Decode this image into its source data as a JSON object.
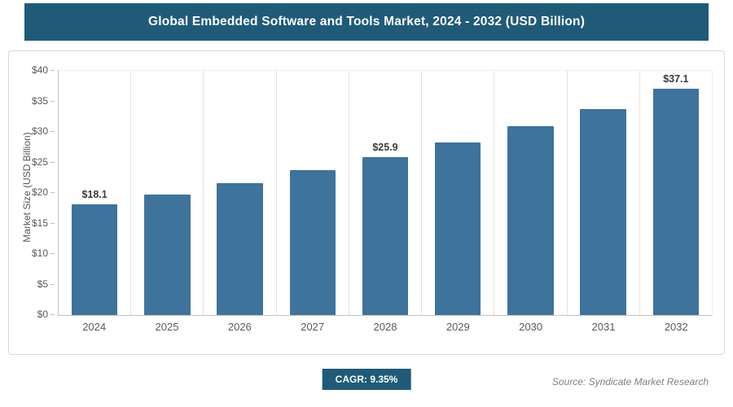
{
  "chart_data": {
    "type": "bar",
    "title": "Global Embedded Software and Tools Market, 2024 - 2032 (USD Billion)",
    "categories": [
      "2024",
      "2025",
      "2026",
      "2027",
      "2028",
      "2029",
      "2030",
      "2031",
      "2032"
    ],
    "values": [
      18.1,
      19.8,
      21.6,
      23.7,
      25.9,
      28.3,
      30.9,
      33.8,
      37.1
    ],
    "value_labels": [
      "$18.1",
      null,
      null,
      null,
      "$25.9",
      null,
      null,
      null,
      "$37.1"
    ],
    "xlabel": "",
    "ylabel": "Market Size (USD Billion)",
    "ylim": [
      0,
      40
    ],
    "ytick_step": 5,
    "ytick_labels": [
      "$0",
      "$5",
      "$10",
      "$15",
      "$20",
      "$25",
      "$30",
      "$35",
      "$40"
    ],
    "grid": "vertical-only",
    "legend": "none"
  },
  "footer": {
    "cagr_label": "CAGR: 9.35%",
    "source": "Source: Syndicate Market Research"
  },
  "colors": {
    "banner": "#1f5b78",
    "bar": "#3e739c",
    "axis_text": "#595959",
    "value_label_text": "#3a3a3a",
    "source_text": "#7f7f7f"
  }
}
